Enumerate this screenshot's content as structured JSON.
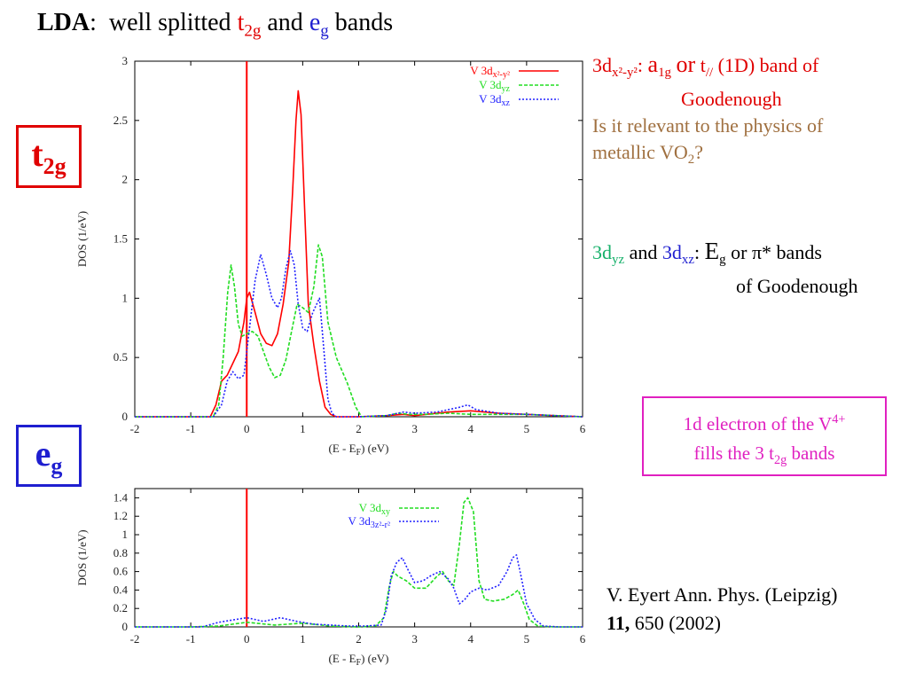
{
  "title": {
    "lda": "LDA",
    "colon": ":",
    "text": "well splitted",
    "t": "t",
    "t_sub": "2g",
    "and": "and",
    "e": "e",
    "e_sub": "g",
    "end": "bands"
  },
  "box_labels": {
    "t2g": {
      "main": "t",
      "sub": "2g"
    },
    "eg": {
      "main": "e",
      "sub": "g"
    }
  },
  "note_a1g": {
    "line1_prefix": "3d",
    "line1_sub": "x²-y²",
    "line1_colon": ":",
    "a": "a",
    "a_sub": "1g",
    "or": "or",
    "t": "t",
    "t_sub": "//",
    "line1_end": "(1D) band of",
    "line2": "Goodenough",
    "question_a": "Is it relevant to the physics of",
    "question_b": "metallic VO",
    "question_sub": "2",
    "question_end": "?"
  },
  "note_eg": {
    "d1": "3d",
    "d1_sub": "yz",
    "and": "and",
    "d2": "3d",
    "d2_sub": "xz",
    "colon": ":",
    "E": "E",
    "E_sub": "g",
    "rest": "or π* bands",
    "line2": "of Goodenough"
  },
  "note_box": {
    "line1": "1d electron of the V",
    "line1_sup": "4+",
    "line2_pre": "fills the 3 t",
    "line2_sub": "2g",
    "line2_post": "bands"
  },
  "reference": {
    "line1": "V. Eyert Ann. Phys. (Leipzig)",
    "volume": "11,",
    "rest": "650 (2002)"
  },
  "colors": {
    "x2y2": "#ff0000",
    "yz": "#22dd22",
    "xz": "#2222ff",
    "xy": "#22dd22",
    "z2": "#2222ff",
    "fermi_line": "#ff0000"
  },
  "chart_data": [
    {
      "type": "line",
      "xlabel": "(E - E_F) (eV)",
      "ylabel": "DOS (1/eV)",
      "xlim": [
        -2,
        6
      ],
      "ylim": [
        0,
        3
      ],
      "xticks": [
        "-2",
        "-1",
        "0",
        "1",
        "2",
        "3",
        "4",
        "5",
        "6"
      ],
      "yticks": [
        "0",
        "0.5",
        "1",
        "1.5",
        "2",
        "2.5",
        "3"
      ],
      "fermi_level": 0,
      "legend_position": "top-right",
      "series": [
        {
          "name": "V 3d x²-y²",
          "color_key": "x2y2",
          "dash": "solid",
          "x": [
            -2,
            -0.65,
            -0.55,
            -0.45,
            -0.35,
            -0.25,
            -0.15,
            -0.05,
            0.0,
            0.05,
            0.15,
            0.25,
            0.35,
            0.45,
            0.55,
            0.65,
            0.75,
            0.82,
            0.88,
            0.92,
            0.97,
            1.03,
            1.1,
            1.2,
            1.3,
            1.4,
            1.5,
            1.6,
            2.0,
            2.5,
            2.8,
            3.0,
            3.2,
            3.6,
            4.0,
            4.5,
            5.0,
            5.5,
            6.0
          ],
          "y": [
            0,
            0,
            0.1,
            0.3,
            0.35,
            0.45,
            0.55,
            0.8,
            1.0,
            1.05,
            0.88,
            0.7,
            0.62,
            0.6,
            0.7,
            0.95,
            1.3,
            1.9,
            2.5,
            2.75,
            2.55,
            1.8,
            0.95,
            0.6,
            0.3,
            0.08,
            0.02,
            0,
            0,
            0.01,
            0.02,
            0.01,
            0.02,
            0.04,
            0.05,
            0.03,
            0.02,
            0.01,
            0
          ]
        },
        {
          "name": "V 3d yz",
          "color_key": "yz",
          "dash": "dashed",
          "x": [
            -2,
            -0.6,
            -0.5,
            -0.42,
            -0.34,
            -0.28,
            -0.22,
            -0.15,
            -0.08,
            0.0,
            0.1,
            0.2,
            0.3,
            0.4,
            0.5,
            0.6,
            0.7,
            0.8,
            0.9,
            1.0,
            1.1,
            1.2,
            1.28,
            1.35,
            1.45,
            1.6,
            1.8,
            1.95,
            2.05,
            2.5,
            2.7,
            2.9,
            3.2,
            3.6,
            4.0,
            4.4,
            5.0,
            5.5,
            6.0
          ],
          "y": [
            0,
            0,
            0.1,
            0.5,
            1.05,
            1.28,
            1.1,
            0.78,
            0.68,
            0.7,
            0.72,
            0.68,
            0.55,
            0.42,
            0.33,
            0.35,
            0.48,
            0.72,
            0.95,
            0.92,
            0.88,
            1.1,
            1.45,
            1.35,
            0.8,
            0.5,
            0.28,
            0.08,
            0,
            0.01,
            0.03,
            0.02,
            0.02,
            0.03,
            0.02,
            0.02,
            0.02,
            0.01,
            0
          ]
        },
        {
          "name": "V 3d xz",
          "color_key": "xz",
          "dash": "dotted",
          "x": [
            -2,
            -0.6,
            -0.45,
            -0.35,
            -0.25,
            -0.15,
            -0.05,
            0.05,
            0.15,
            0.25,
            0.35,
            0.45,
            0.55,
            0.62,
            0.7,
            0.78,
            0.85,
            0.92,
            1.0,
            1.08,
            1.18,
            1.3,
            1.38,
            1.45,
            1.52,
            1.6,
            2.0,
            2.5,
            2.8,
            3.0,
            3.4,
            3.8,
            3.95,
            4.1,
            4.5,
            5.0,
            6.0
          ],
          "y": [
            0,
            0,
            0.1,
            0.3,
            0.38,
            0.32,
            0.35,
            0.75,
            1.15,
            1.37,
            1.2,
            1.0,
            0.92,
            1.0,
            1.25,
            1.4,
            1.28,
            0.95,
            0.75,
            0.72,
            0.88,
            1.0,
            0.55,
            0.15,
            0.03,
            0,
            0,
            0.01,
            0.04,
            0.03,
            0.04,
            0.08,
            0.1,
            0.06,
            0.03,
            0.02,
            0
          ]
        }
      ]
    },
    {
      "type": "line",
      "xlabel": "(E - E_F) (eV)",
      "ylabel": "DOS (1/eV)",
      "xlim": [
        -2,
        6
      ],
      "ylim": [
        0,
        1.5
      ],
      "xticks": [
        "-2",
        "-1",
        "0",
        "1",
        "2",
        "3",
        "4",
        "5",
        "6"
      ],
      "yticks": [
        "0",
        "0.2",
        "0.4",
        "0.6",
        "0.8",
        "1",
        "1.2",
        "1.4"
      ],
      "fermi_level": 0,
      "legend_position": "top-center",
      "series": [
        {
          "name": "V 3d xy",
          "color_key": "xy",
          "dash": "dashed",
          "x": [
            -2,
            -1.0,
            -0.5,
            0.0,
            0.5,
            1.0,
            1.5,
            2.0,
            2.3,
            2.45,
            2.55,
            2.62,
            2.7,
            2.85,
            3.0,
            3.2,
            3.4,
            3.5,
            3.6,
            3.7,
            3.8,
            3.88,
            3.95,
            4.05,
            4.15,
            4.25,
            4.4,
            4.6,
            4.75,
            4.85,
            4.95,
            5.05,
            5.2,
            5.5,
            6.0
          ],
          "y": [
            0,
            0,
            0.01,
            0.05,
            0.02,
            0.04,
            0.01,
            0,
            0.01,
            0.1,
            0.45,
            0.6,
            0.55,
            0.5,
            0.42,
            0.42,
            0.55,
            0.6,
            0.5,
            0.45,
            0.9,
            1.35,
            1.4,
            1.25,
            0.5,
            0.3,
            0.28,
            0.3,
            0.35,
            0.4,
            0.25,
            0.08,
            0.01,
            0,
            0
          ]
        },
        {
          "name": "V 3d 3z²-r²",
          "color_key": "z2",
          "dash": "dotted",
          "x": [
            -2,
            -0.8,
            -0.5,
            -0.3,
            0.0,
            0.3,
            0.6,
            0.9,
            1.2,
            1.5,
            1.8,
            2.1,
            2.4,
            2.5,
            2.58,
            2.68,
            2.78,
            2.88,
            3.0,
            3.15,
            3.3,
            3.45,
            3.6,
            3.7,
            3.8,
            3.9,
            4.0,
            4.15,
            4.3,
            4.5,
            4.65,
            4.75,
            4.82,
            4.9,
            5.0,
            5.15,
            5.3,
            5.6,
            6.0
          ],
          "y": [
            0,
            0,
            0.05,
            0.07,
            0.1,
            0.06,
            0.1,
            0.06,
            0.03,
            0.02,
            0.01,
            0.01,
            0.02,
            0.2,
            0.55,
            0.7,
            0.75,
            0.62,
            0.48,
            0.5,
            0.56,
            0.6,
            0.52,
            0.42,
            0.25,
            0.3,
            0.38,
            0.42,
            0.4,
            0.45,
            0.6,
            0.75,
            0.78,
            0.55,
            0.25,
            0.08,
            0.01,
            0,
            0
          ]
        }
      ]
    }
  ]
}
